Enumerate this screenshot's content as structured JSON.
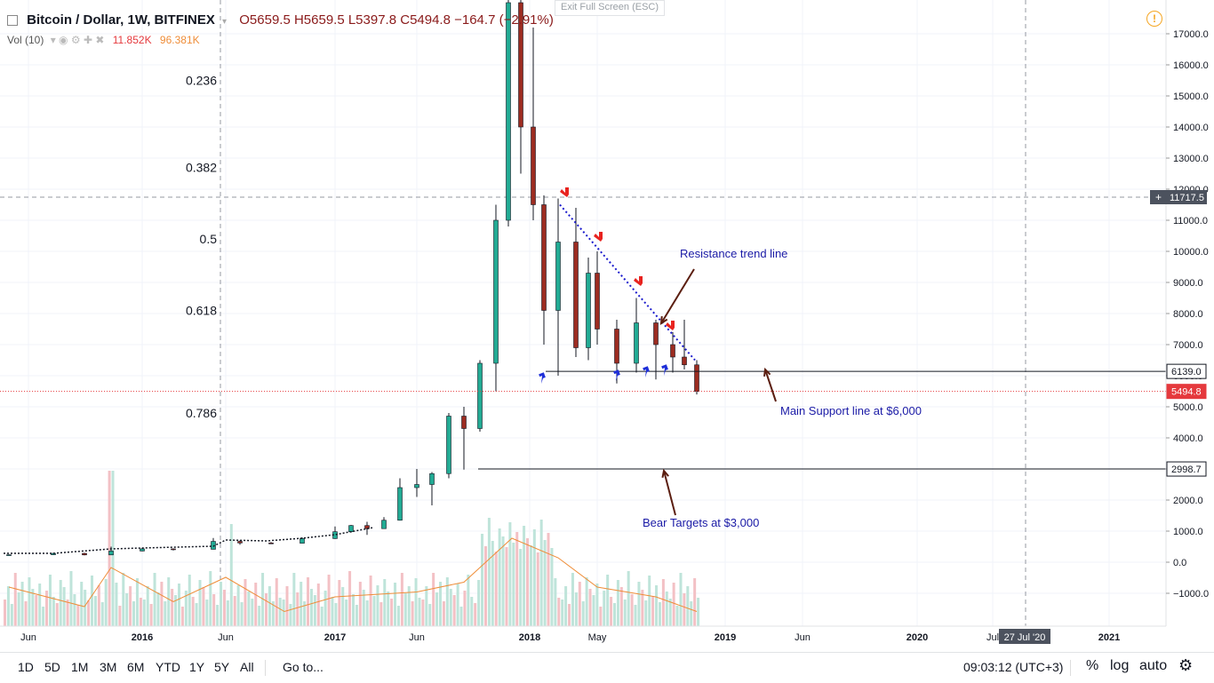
{
  "header": {
    "symbol": "Bitcoin / Dollar, 1W, BITFINEX",
    "ohlc": "O5659.5  H5659.5  L5397.8  C5494.8  −164.7 (−2.91%)",
    "exit_fullscreen": "Exit Full Screen (ESC)",
    "vol_label": "Vol (10)",
    "vol_value": "11.852K",
    "vol_ma": "96.381K"
  },
  "colors": {
    "up": "#22ab94",
    "down": "#9c2c21",
    "vol_up": "#bfe4da",
    "vol_down": "#f3c1c5",
    "vol_ma": "#ef8d38",
    "trend": "#1a1acc",
    "annotation": "#1a1aa6",
    "arrow_brown": "#5b1e10",
    "arrow_red": "#e8231f",
    "arrow_blue": "#1e2fd8",
    "price_line": "#e5393d"
  },
  "chart_data": {
    "type": "candlestick",
    "title": "Bitcoin / Dollar, 1W, BITFINEX",
    "y_ticks": [
      -1000,
      0,
      1000,
      2000,
      3000,
      4000,
      5000,
      6000,
      7000,
      8000,
      9000,
      10000,
      11000,
      12000,
      13000,
      14000,
      15000,
      16000,
      17000
    ],
    "ylim": [
      -2000,
      18000
    ],
    "x_ticks": [
      {
        "label": "Jun",
        "date": "2015-06"
      },
      {
        "label": "2016",
        "date": "2016-01"
      },
      {
        "label": "Jun",
        "date": "2016-06"
      },
      {
        "label": "2017",
        "date": "2017-01"
      },
      {
        "label": "Jun",
        "date": "2017-06"
      },
      {
        "label": "2018",
        "date": "2018-01"
      },
      {
        "label": "May",
        "date": "2018-05"
      },
      {
        "label": "2019",
        "date": "2019-01"
      },
      {
        "label": "Jun",
        "date": "2019-06"
      },
      {
        "label": "2020",
        "date": "2020-01"
      },
      {
        "label": "Jul",
        "date": "2020-07"
      },
      {
        "label": "2021",
        "date": "2021-01"
      }
    ],
    "crosshair_date": "27 Jul '20",
    "crosshair_price": "11717.5",
    "price_labels": [
      {
        "value": 6139.0,
        "text": "6139.0",
        "style": "line"
      },
      {
        "value": 5494.8,
        "text": "5494.8",
        "style": "last"
      },
      {
        "value": 2998.7,
        "text": "2998.7",
        "style": "line"
      }
    ],
    "fib_levels": [
      {
        "label": "0.236",
        "price": 15500
      },
      {
        "label": "0.382",
        "price": 12700
      },
      {
        "label": "0.5",
        "price": 10400
      },
      {
        "label": "0.618",
        "price": 8100
      },
      {
        "label": "0.786",
        "price": 4800
      }
    ],
    "annotations": {
      "resistance": "Resistance trend line",
      "support": "Main Support line at $6,000",
      "bear": "Bear Targets at $3,000"
    },
    "candles": [
      {
        "date": "2015-05",
        "o": 230,
        "h": 250,
        "l": 220,
        "c": 240
      },
      {
        "date": "2015-07",
        "o": 240,
        "h": 300,
        "l": 235,
        "c": 285
      },
      {
        "date": "2015-09",
        "o": 285,
        "h": 300,
        "l": 220,
        "c": 235
      },
      {
        "date": "2015-11",
        "o": 235,
        "h": 500,
        "l": 230,
        "c": 360
      },
      {
        "date": "2016-01",
        "o": 360,
        "h": 460,
        "l": 350,
        "c": 430
      },
      {
        "date": "2016-03",
        "o": 430,
        "h": 440,
        "l": 380,
        "c": 415
      },
      {
        "date": "2016-05",
        "o": 415,
        "h": 780,
        "l": 410,
        "c": 670
      },
      {
        "date": "2016-07",
        "o": 670,
        "h": 700,
        "l": 560,
        "c": 620
      },
      {
        "date": "2016-09",
        "o": 620,
        "h": 650,
        "l": 590,
        "c": 610
      },
      {
        "date": "2016-11",
        "o": 610,
        "h": 800,
        "l": 600,
        "c": 760
      },
      {
        "date": "2017-01",
        "o": 760,
        "h": 1150,
        "l": 750,
        "c": 980
      },
      {
        "date": "2017-02",
        "o": 980,
        "h": 1200,
        "l": 950,
        "c": 1180
      },
      {
        "date": "2017-03",
        "o": 1180,
        "h": 1300,
        "l": 880,
        "c": 1080
      },
      {
        "date": "2017-04",
        "o": 1080,
        "h": 1450,
        "l": 1070,
        "c": 1350
      },
      {
        "date": "2017-05",
        "o": 1350,
        "h": 2700,
        "l": 1340,
        "c": 2400
      },
      {
        "date": "2017-06",
        "o": 2400,
        "h": 3000,
        "l": 2100,
        "c": 2500
      },
      {
        "date": "2017-07",
        "o": 2500,
        "h": 2900,
        "l": 1830,
        "c": 2850
      },
      {
        "date": "2017-08",
        "o": 2850,
        "h": 4800,
        "l": 2700,
        "c": 4700
      },
      {
        "date": "2017-09",
        "o": 4700,
        "h": 5000,
        "l": 2980,
        "c": 4300
      },
      {
        "date": "2017-10",
        "o": 4300,
        "h": 6500,
        "l": 4200,
        "c": 6400
      },
      {
        "date": "2017-11",
        "o": 6400,
        "h": 11500,
        "l": 5500,
        "c": 11000
      },
      {
        "date": "2017-12a",
        "o": 11000,
        "h": 19600,
        "l": 10800,
        "c": 18000
      },
      {
        "date": "2017-12b",
        "o": 18000,
        "h": 19800,
        "l": 12500,
        "c": 14000
      },
      {
        "date": "2018-01a",
        "o": 14000,
        "h": 17200,
        "l": 11000,
        "c": 11500
      },
      {
        "date": "2018-01b",
        "o": 11500,
        "h": 11800,
        "l": 7000,
        "c": 8100
      },
      {
        "date": "2018-02",
        "o": 8100,
        "h": 11700,
        "l": 6000,
        "c": 10300
      },
      {
        "date": "2018-03",
        "o": 10300,
        "h": 11400,
        "l": 6600,
        "c": 6900
      },
      {
        "date": "2018-04",
        "o": 6900,
        "h": 9800,
        "l": 6500,
        "c": 9300
      },
      {
        "date": "2018-05",
        "o": 9300,
        "h": 10000,
        "l": 7000,
        "c": 7500
      },
      {
        "date": "2018-06",
        "o": 7500,
        "h": 7800,
        "l": 5750,
        "c": 6400
      },
      {
        "date": "2018-07",
        "o": 6400,
        "h": 8500,
        "l": 6100,
        "c": 7700
      },
      {
        "date": "2018-08",
        "o": 7700,
        "h": 7800,
        "l": 5880,
        "c": 7000
      },
      {
        "date": "2018-09",
        "o": 7000,
        "h": 7400,
        "l": 6100,
        "c": 6600
      },
      {
        "date": "2018-10",
        "o": 6600,
        "h": 7800,
        "l": 6200,
        "c": 6350
      },
      {
        "date": "2018-11",
        "o": 6350,
        "h": 6500,
        "l": 5397,
        "c": 5495
      }
    ],
    "volume_ma": [
      {
        "date": "2015-05",
        "v": 0.4
      },
      {
        "date": "2015-09",
        "v": 0.2
      },
      {
        "date": "2015-11",
        "v": 0.6
      },
      {
        "date": "2016-03",
        "v": 0.25
      },
      {
        "date": "2016-06",
        "v": 0.5
      },
      {
        "date": "2016-10",
        "v": 0.15
      },
      {
        "date": "2017-01",
        "v": 0.3
      },
      {
        "date": "2017-06",
        "v": 0.35
      },
      {
        "date": "2017-09",
        "v": 0.45
      },
      {
        "date": "2017-12",
        "v": 0.9
      },
      {
        "date": "2018-02",
        "v": 0.7
      },
      {
        "date": "2018-05",
        "v": 0.4
      },
      {
        "date": "2018-08",
        "v": 0.3
      },
      {
        "date": "2018-11",
        "v": 0.15
      }
    ]
  },
  "toolbar": {
    "ranges": [
      "1D",
      "5D",
      "1M",
      "3M",
      "6M",
      "YTD",
      "1Y",
      "5Y",
      "All"
    ],
    "goto": "Go to...",
    "clock": "09:03:12 (UTC+3)",
    "percent": "%",
    "log": "log",
    "auto": "auto"
  }
}
